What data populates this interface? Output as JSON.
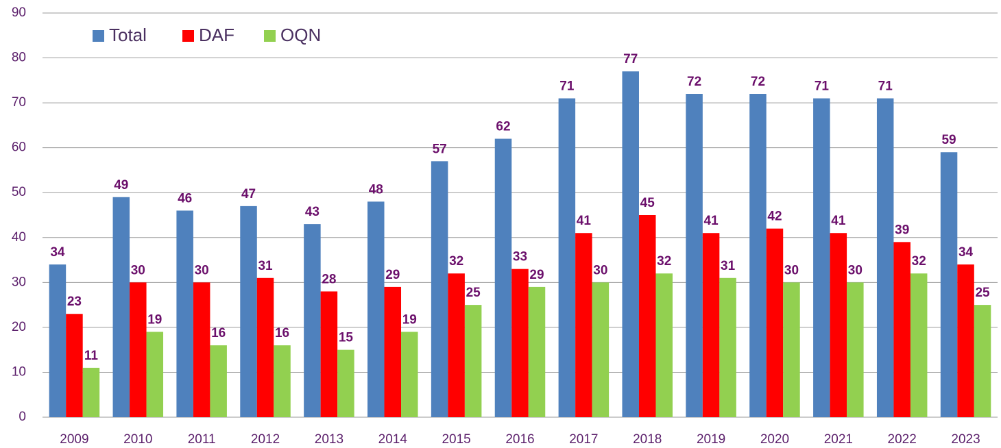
{
  "chart_data": {
    "type": "bar",
    "categories": [
      "2009",
      "2010",
      "2011",
      "2012",
      "2013",
      "2014",
      "2015",
      "2016",
      "2017",
      "2018",
      "2019",
      "2020",
      "2021",
      "2022",
      "2023"
    ],
    "series": [
      {
        "name": "Total",
        "color": "#4f81bd",
        "values": [
          34,
          49,
          46,
          47,
          43,
          48,
          57,
          62,
          71,
          77,
          72,
          72,
          71,
          71,
          59
        ]
      },
      {
        "name": "DAF",
        "color": "#ff0000",
        "values": [
          23,
          30,
          30,
          31,
          28,
          29,
          32,
          33,
          41,
          45,
          41,
          42,
          41,
          39,
          34
        ]
      },
      {
        "name": "OQN",
        "color": "#92d050",
        "values": [
          11,
          19,
          16,
          16,
          15,
          19,
          25,
          29,
          30,
          32,
          31,
          30,
          30,
          32,
          25
        ]
      }
    ],
    "ylim": [
      0,
      90
    ],
    "yticks": [
      0,
      10,
      20,
      30,
      40,
      50,
      60,
      70,
      80,
      90
    ],
    "grid": true,
    "legend": "top-left"
  }
}
